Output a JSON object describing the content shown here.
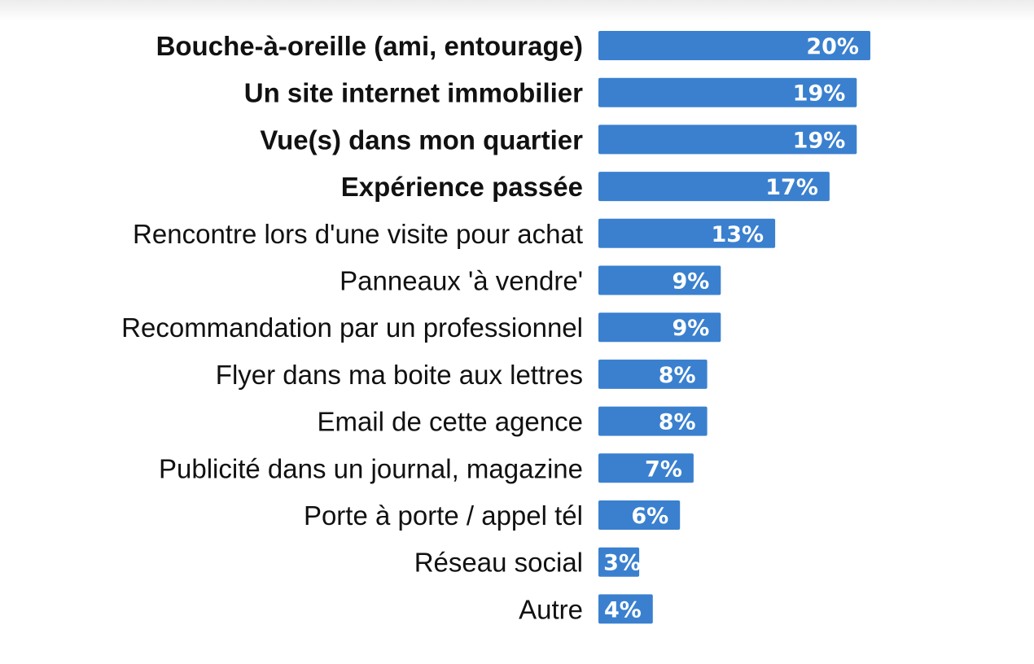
{
  "chart_data": {
    "type": "bar",
    "orientation": "horizontal",
    "categories": [
      "Bouche-à-oreille (ami, entourage)",
      "Un site internet immobilier",
      "Vue(s) dans mon quartier",
      "Expérience passée",
      "Rencontre lors d'une visite pour achat",
      "Panneaux 'à vendre'",
      "Recommandation par un professionnel",
      "Flyer dans ma boite aux lettres",
      "Email de cette agence",
      "Publicité dans un journal, magazine",
      "Porte à porte / appel tél",
      "Réseau social",
      "Autre"
    ],
    "values": [
      20,
      19,
      19,
      17,
      13,
      9,
      9,
      8,
      8,
      7,
      6,
      3,
      4
    ],
    "value_labels": [
      "20%",
      "19%",
      "19%",
      "17%",
      "13%",
      "9%",
      "9%",
      "8%",
      "8%",
      "7%",
      "6%",
      "3%",
      "4%"
    ],
    "highlighted": [
      true,
      true,
      true,
      true,
      false,
      false,
      false,
      false,
      false,
      false,
      false,
      false,
      false
    ],
    "unit": "%",
    "xlim": [
      0,
      20
    ],
    "bar_color": "#3a80cf",
    "grid": false,
    "legend": "none"
  }
}
